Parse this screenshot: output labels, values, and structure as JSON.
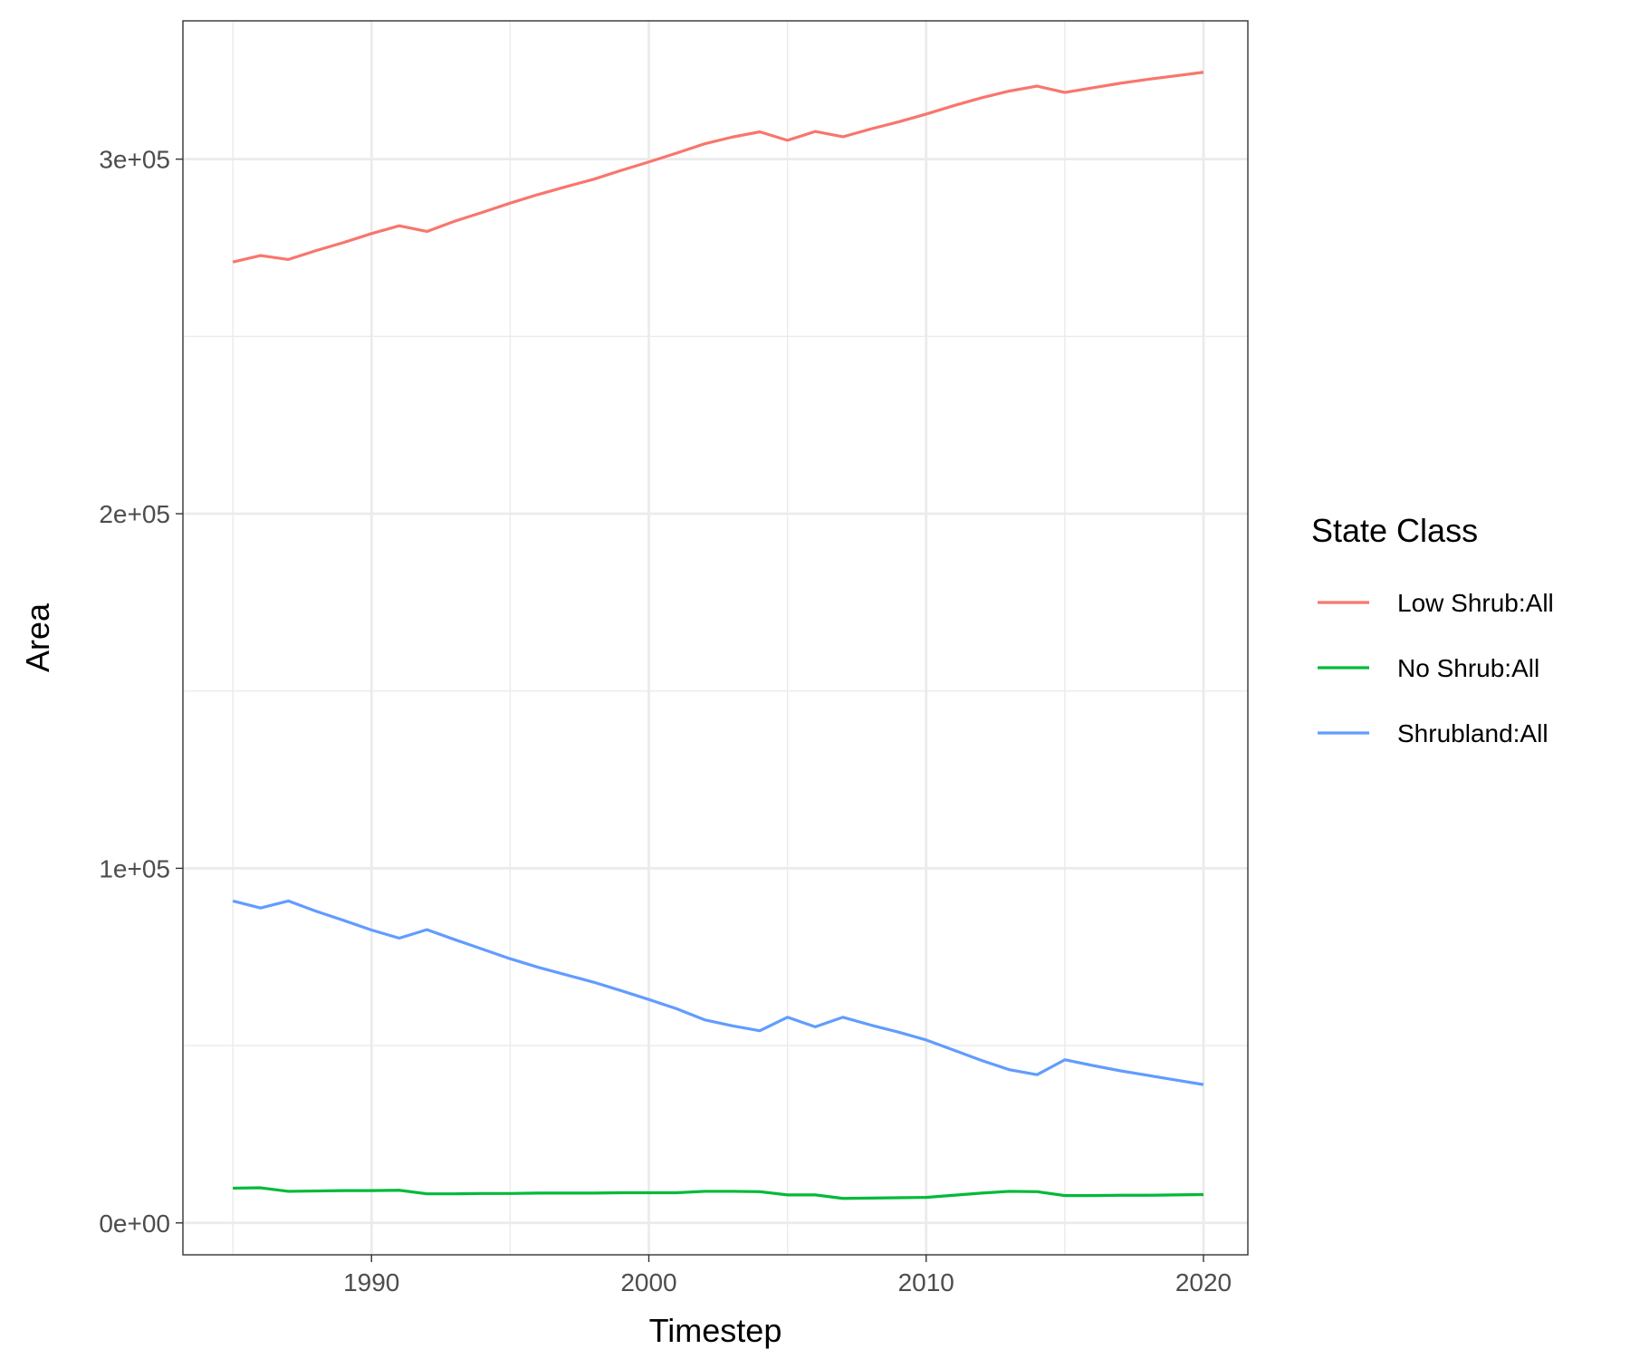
{
  "chart_data": {
    "type": "line",
    "title": "",
    "xlabel": "Timestep",
    "ylabel": "Area",
    "xlim": [
      1983.2,
      2021.6
    ],
    "ylim": [
      -9000,
      339000
    ],
    "x_ticks": [
      1990,
      2000,
      2010,
      2020
    ],
    "x_tick_labels": [
      "1990",
      "2000",
      "2010",
      "2020"
    ],
    "y_ticks": [
      0,
      100000,
      200000,
      300000
    ],
    "y_tick_labels": [
      "0e+00",
      "1e+05",
      "2e+05",
      "3e+05"
    ],
    "grid": true,
    "legend": {
      "title": "State Class",
      "position": "right"
    },
    "x": [
      1985,
      1986,
      1987,
      1988,
      1989,
      1990,
      1991,
      1992,
      1993,
      1994,
      1995,
      1996,
      1997,
      1998,
      1999,
      2000,
      2001,
      2002,
      2003,
      2004,
      2005,
      2006,
      2007,
      2008,
      2009,
      2010,
      2011,
      2012,
      2013,
      2014,
      2015,
      2016,
      2017,
      2018,
      2019,
      2020
    ],
    "series": [
      {
        "name": "Low Shrub:All",
        "color": "#F8766D",
        "values": [
          271000,
          272800,
          271700,
          274200,
          276500,
          279000,
          281200,
          279600,
          282500,
          285000,
          287600,
          290000,
          292200,
          294300,
          296800,
          299200,
          301700,
          304300,
          306200,
          307700,
          305300,
          307800,
          306300,
          308500,
          310500,
          312700,
          315100,
          317300,
          319200,
          320600,
          318800,
          320100,
          321400,
          322500,
          323500,
          324500
        ]
      },
      {
        "name": "No Shrub:All",
        "color": "#00BA38",
        "values": [
          9800,
          9900,
          8900,
          9000,
          9100,
          9100,
          9200,
          8200,
          8200,
          8300,
          8300,
          8400,
          8400,
          8400,
          8500,
          8500,
          8500,
          8900,
          8900,
          8800,
          7900,
          7900,
          6900,
          7000,
          7100,
          7200,
          7800,
          8400,
          8900,
          8800,
          7700,
          7700,
          7800,
          7800,
          7900,
          8000
        ]
      },
      {
        "name": "Shrubland:All",
        "color": "#619CFF",
        "values": [
          90800,
          88800,
          90800,
          87900,
          85300,
          82600,
          80300,
          82700,
          79900,
          77200,
          74500,
          72100,
          70000,
          67900,
          65500,
          63000,
          60400,
          57300,
          55600,
          54200,
          58000,
          55300,
          58000,
          55800,
          53800,
          51600,
          48700,
          45800,
          43200,
          41800,
          46000,
          44400,
          42900,
          41600,
          40300,
          39000
        ]
      }
    ]
  }
}
